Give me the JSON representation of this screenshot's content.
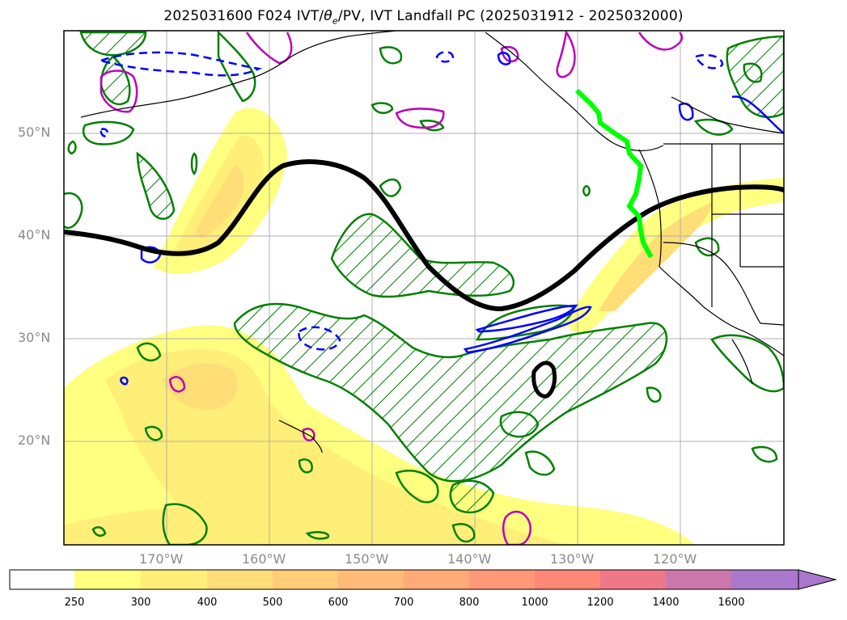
{
  "title": {
    "prefix": "2025031600 F024 IVT/",
    "theta_sym": "θ",
    "theta_sub": "e",
    "suffix": "/PV, IVT Landfall PC (2025031912 - 2025032000)"
  },
  "map": {
    "lat_ticks": [
      "50°N",
      "40°N",
      "30°N",
      "20°N"
    ],
    "lat_values": [
      50,
      40,
      30,
      20
    ],
    "lon_ticks": [
      "170°W",
      "160°W",
      "150°W",
      "140°W",
      "130°W",
      "120°W"
    ],
    "lon_values": [
      -170,
      -160,
      -150,
      -140,
      -130,
      -120
    ],
    "extent": {
      "lon": [
        -180,
        -110
      ],
      "lat": [
        10,
        60
      ]
    },
    "colors": {
      "coast": "#000000",
      "grid": "#b0b0b0",
      "theta_e_contour": "#008000",
      "pv_contour": "#bb00bb",
      "ivt_neg_contour": "#0000ff",
      "jet_line": "#000000",
      "landfall_line": "#00ff00"
    }
  },
  "colorbar": {
    "levels": [
      "250",
      "300",
      "400",
      "500",
      "600",
      "700",
      "800",
      "1000",
      "1200",
      "1400",
      "1600"
    ],
    "colors": [
      "#ffffff",
      "#ffff80",
      "#ffee77",
      "#ffdd77",
      "#ffcc77",
      "#ffbb77",
      "#ffaa77",
      "#ff9977",
      "#ff8877",
      "#ee7788",
      "#cc77aa",
      "#aa77cc"
    ],
    "extend": "max"
  }
}
